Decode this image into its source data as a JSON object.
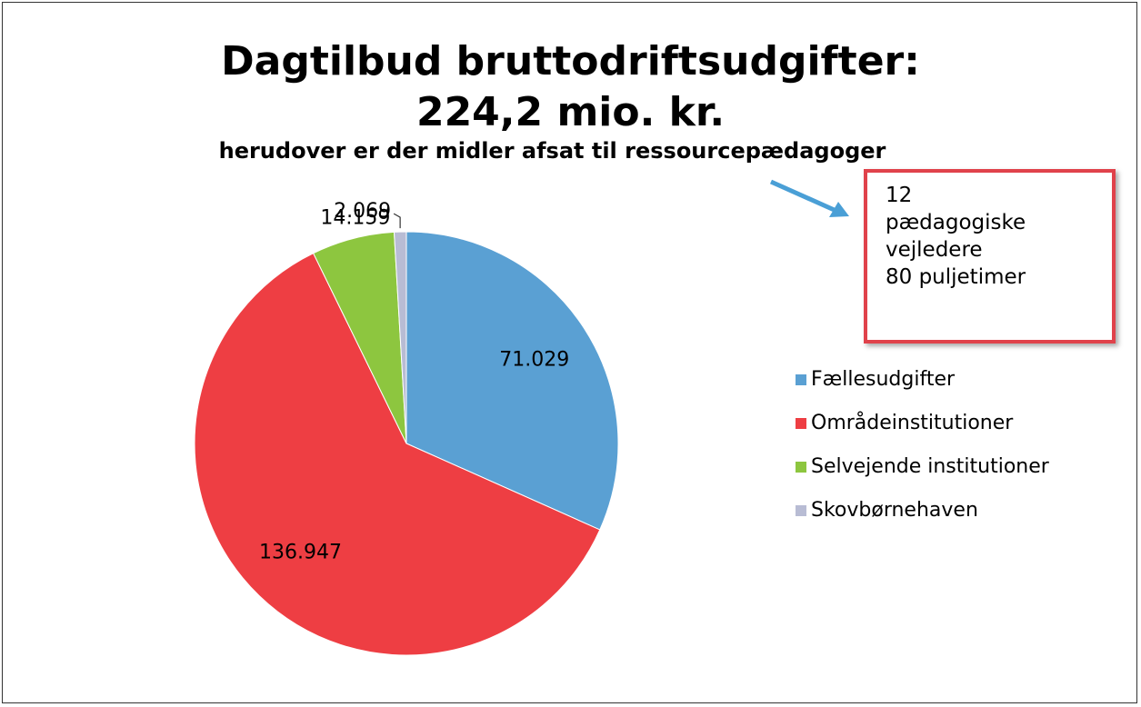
{
  "chart_data": {
    "type": "pie",
    "title": "Dagtilbud bruttodriftsudgifter:\n224,2 mio. kr.",
    "subtitle": "herudover er der midler afsat til ressourcepædagoger",
    "annotation": "12\npædagogiske\nvejledere\n80 puljetimer",
    "categories": [
      "Fællesudgifter",
      "Områdeinstitutioner",
      "Selvejende institutioner",
      "Skovbørnehaven"
    ],
    "values": [
      71029,
      136947,
      14159,
      2069
    ],
    "value_labels": [
      "71.029",
      "136.947",
      "14.159",
      "2.069"
    ],
    "colors": [
      "#5aa0d3",
      "#ee3e43",
      "#8dc63f",
      "#b8bcd4"
    ],
    "legend": "right"
  }
}
